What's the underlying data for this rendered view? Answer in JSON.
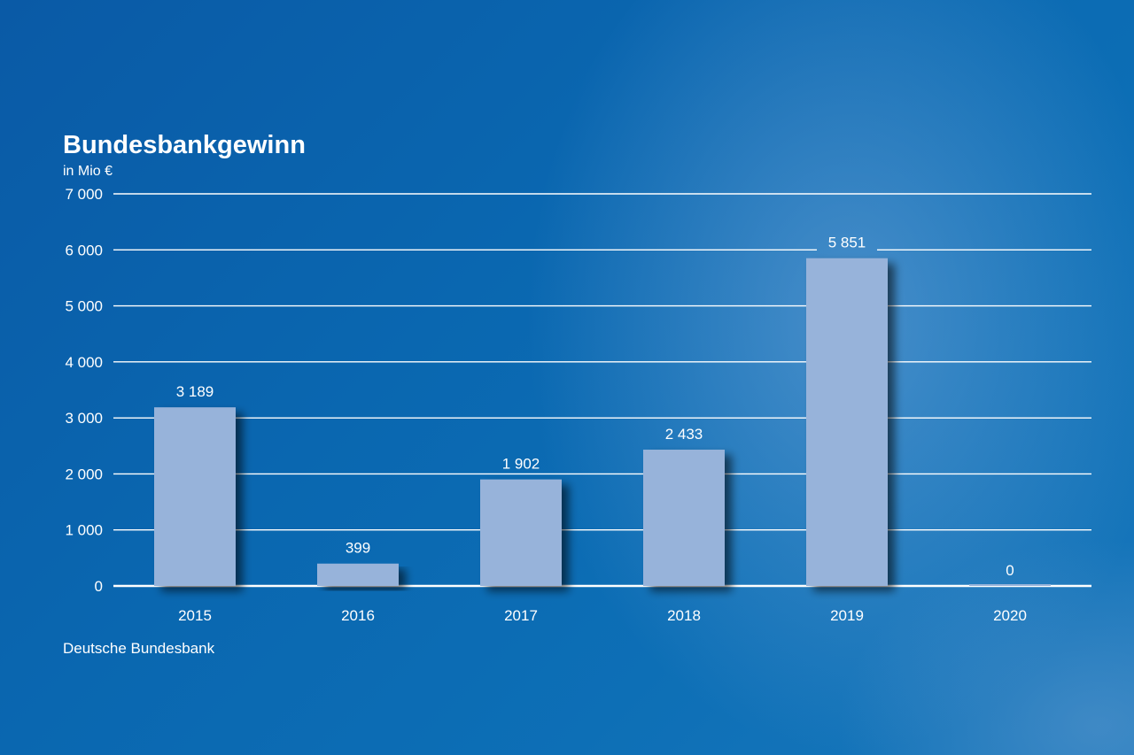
{
  "chart_data": {
    "type": "bar",
    "title": "Bundesbankgewinn",
    "subtitle": "in Mio €",
    "source": "Deutsche Bundesbank",
    "categories": [
      "2015",
      "2016",
      "2017",
      "2018",
      "2019",
      "2020"
    ],
    "values": [
      3189,
      399,
      1902,
      2433,
      5851,
      0
    ],
    "value_labels": [
      "3 189",
      "399",
      "1 902",
      "2 433",
      "5 851",
      "0"
    ],
    "yticks": [
      0,
      1000,
      2000,
      3000,
      4000,
      5000,
      6000,
      7000
    ],
    "ytick_labels": [
      "0",
      "1 000",
      "2 000",
      "3 000",
      "4 000",
      "5 000",
      "6 000",
      "7 000"
    ],
    "ylim": [
      0,
      7000
    ],
    "grid": true,
    "colors": {
      "bar": "#97b3da",
      "grid": "#ffffff",
      "text": "#ffffff"
    }
  }
}
